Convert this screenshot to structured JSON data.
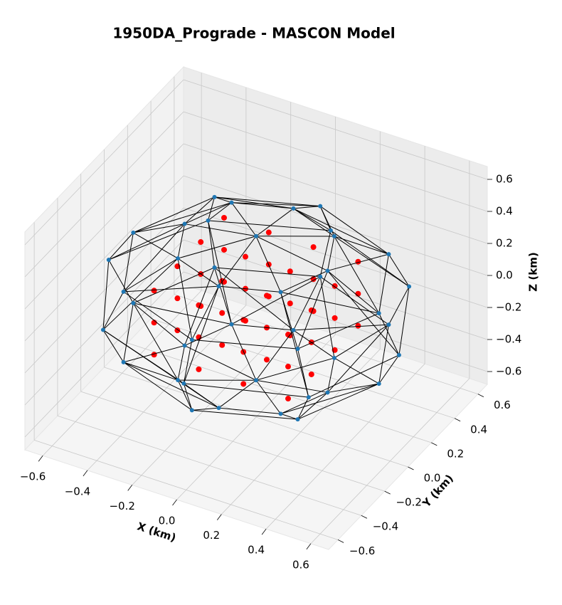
{
  "chart_data": {
    "type": "scatter3d",
    "title": "1950DA_Prograde - MASCON Model",
    "xlabel": "X (km)",
    "ylabel": "Y (km)",
    "zlabel": "Z (km)",
    "xlim": [
      -0.68,
      0.68
    ],
    "ylim": [
      -0.68,
      0.68
    ],
    "zlim": [
      -0.68,
      0.68
    ],
    "xticks": [
      {
        "value": -0.6,
        "label": "−0.6"
      },
      {
        "value": -0.4,
        "label": "−0.4"
      },
      {
        "value": -0.2,
        "label": "−0.2"
      },
      {
        "value": 0,
        "label": "0.0"
      },
      0.2,
      0.4,
      0.6
    ],
    "yticks": [
      {
        "value": -0.6,
        "label": "−0.6"
      },
      {
        "value": -0.4,
        "label": "−0.4"
      },
      {
        "value": -0.2,
        "label": "−0.2"
      },
      {
        "value": 0,
        "label": "0.0"
      },
      0.2,
      0.4,
      0.6
    ],
    "zticks": [
      {
        "value": -0.6,
        "label": "−0.6"
      },
      {
        "value": -0.4,
        "label": "−0.4"
      },
      {
        "value": -0.2,
        "label": "−0.2"
      },
      {
        "value": 0,
        "label": "0.0"
      },
      0.2,
      0.4,
      0.6
    ],
    "edge_color": "#000000",
    "series": [
      {
        "color": "#1f77b4",
        "x": [
          0.64,
          0.45,
          0,
          -0.45,
          -0.66,
          -0.45,
          0,
          0.47,
          0.55,
          0.39,
          0,
          -0.39,
          -0.55,
          -0.39,
          0,
          0.39,
          0.55,
          0.39,
          0,
          -0.39,
          -0.55,
          -0.39,
          0,
          0.39,
          0.32,
          0.23,
          0,
          -0.23,
          -0.32,
          -0.23,
          0,
          0.23,
          0.32,
          0.23,
          0,
          -0.23,
          -0.32,
          -0.23,
          0,
          0.23,
          0,
          0
        ],
        "y": [
          0,
          0.45,
          0.64,
          0.45,
          0,
          -0.45,
          -0.62,
          -0.45,
          0,
          0.39,
          0.55,
          0.39,
          0,
          -0.39,
          -0.55,
          -0.39,
          0,
          0.39,
          0.55,
          0.39,
          0,
          -0.39,
          -0.55,
          -0.39,
          0,
          0.23,
          0.32,
          0.23,
          0,
          -0.23,
          -0.32,
          -0.23,
          0,
          0.23,
          0.32,
          0.23,
          0,
          -0.23,
          -0.32,
          -0.23,
          0,
          0
        ],
        "z": [
          0,
          0,
          0,
          0,
          0,
          0,
          0,
          0,
          0.22,
          0.22,
          0.22,
          0.22,
          0.22,
          0.22,
          0.22,
          0.22,
          -0.22,
          -0.22,
          -0.22,
          -0.22,
          -0.22,
          -0.22,
          -0.22,
          -0.22,
          0.38,
          0.38,
          0.38,
          0.38,
          0.38,
          0.38,
          0.38,
          0.38,
          -0.38,
          -0.38,
          -0.38,
          -0.38,
          -0.38,
          -0.38,
          -0.38,
          -0.38,
          0.45,
          -0.45
        ]
      },
      {
        "color": "#ff0000",
        "x": [
          -0.3,
          -0.1,
          0.1,
          0.3,
          -0.3,
          -0.1,
          0.1,
          0.3,
          -0.3,
          -0.1,
          0.1,
          0.3,
          -0.3,
          -0.1,
          0.1,
          0.3,
          -0.3,
          -0.1,
          0.1,
          0.3,
          -0.3,
          -0.1,
          0.1,
          0.3,
          -0.3,
          -0.1,
          0.1,
          0.3,
          -0.3,
          -0.1,
          0.1,
          0.3,
          -0.3,
          -0.1,
          0.1,
          0.3,
          -0.3,
          -0.1,
          0.1,
          0.3,
          -0.3,
          -0.1,
          0.1,
          0.3,
          -0.3,
          -0.1,
          0.1,
          0.3
        ],
        "y": [
          -0.3,
          -0.3,
          -0.3,
          -0.3,
          -0.1,
          -0.1,
          -0.1,
          -0.1,
          0.1,
          0.1,
          0.1,
          0.1,
          0.3,
          0.3,
          0.3,
          0.3,
          -0.3,
          -0.3,
          -0.3,
          -0.3,
          -0.1,
          -0.1,
          -0.1,
          -0.1,
          0.1,
          0.1,
          0.1,
          0.1,
          0.3,
          0.3,
          0.3,
          0.3,
          -0.3,
          -0.3,
          -0.3,
          -0.3,
          -0.1,
          -0.1,
          -0.1,
          -0.1,
          0.1,
          0.1,
          0.1,
          0.1,
          0.3,
          0.3,
          0.3,
          0.3
        ],
        "z": [
          -0.2,
          -0.2,
          -0.2,
          -0.2,
          -0.2,
          -0.2,
          -0.2,
          -0.2,
          -0.2,
          -0.2,
          -0.2,
          -0.2,
          -0.2,
          -0.2,
          -0.2,
          -0.2,
          0,
          0,
          0,
          0,
          0,
          0,
          0,
          0,
          0,
          0,
          0,
          0,
          0,
          0,
          0,
          0,
          0.2,
          0.2,
          0.2,
          0.2,
          0.2,
          0.2,
          0.2,
          0.2,
          0.2,
          0.2,
          0.2,
          0.2,
          0.2,
          0.2,
          0.2,
          0.2
        ]
      }
    ]
  }
}
